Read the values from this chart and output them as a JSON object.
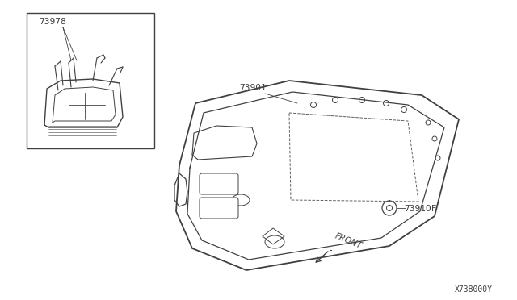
{
  "bg_color": "#ffffff",
  "line_color": "#404040",
  "diagram_code": "X73B000Y",
  "part_inset_label": "73978",
  "part_main_label": "73901",
  "part_clip_label": "7391OF",
  "front_label": "FRONT",
  "font_size_label": 8,
  "font_size_code": 7
}
